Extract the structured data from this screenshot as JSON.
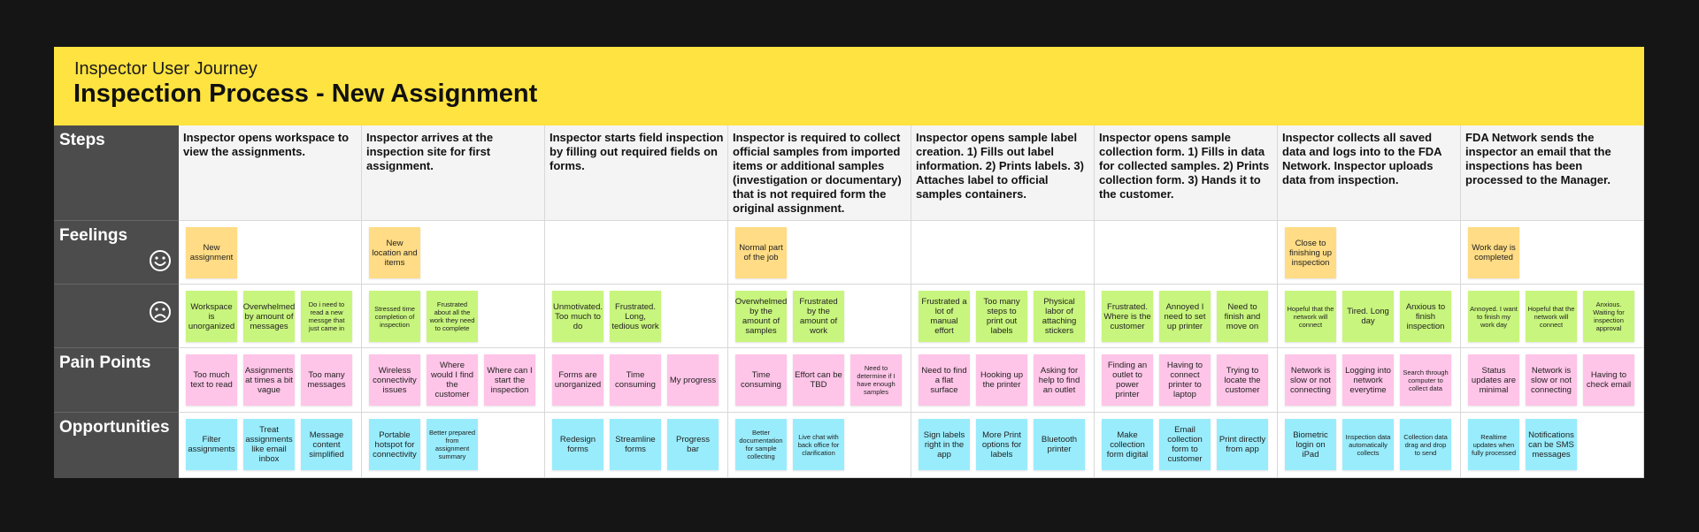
{
  "header": {
    "subtitle": "Inspector User Journey",
    "title": "Inspection Process - New Assignment"
  },
  "colors": {
    "header": "#ffe340",
    "label_column": "#4c4c4c",
    "feeling_positive": "#ffdc85",
    "feeling_negative": "#c8f57d",
    "pain_point": "#ffc5e8",
    "opportunity": "#99ecfc"
  },
  "rows": {
    "steps": "Steps",
    "feelings": "Feelings",
    "pain_points": "Pain Points",
    "opportunities": "Opportunities",
    "face_happy": "smiley-face-icon",
    "face_sad": "sad-face-icon"
  },
  "columns": [
    {
      "step": "Inspector opens workspace to view the assignments.",
      "positive": [
        "New assignment"
      ],
      "negative": [
        "Workspace is unorganized",
        "Overwhelmed by amount of messages",
        "Do i need to read a new messge that just came in"
      ],
      "pain": [
        "Too much text to read",
        "Assignments at times a bit vague",
        "Too many messages"
      ],
      "opportunities": [
        "Filter assignments",
        "Treat assignments like email inbox",
        "Message content simplified"
      ]
    },
    {
      "step": "Inspector arrives at the inspection site for first assignment.",
      "positive": [
        "New location and items"
      ],
      "negative": [
        "Stressed time completion of inspection",
        "Frustrated about all the work they need to complete"
      ],
      "pain": [
        "Wireless connectivity issues",
        "Where would I find the customer",
        "Where can I start the inspection"
      ],
      "opportunities": [
        "Portable hotspot for connectivity",
        "Better prepared from assignment summary"
      ]
    },
    {
      "step": "Inspector starts field inspection by filling out required fields on forms.",
      "positive": [],
      "negative": [
        "Unmotivated. Too much to do",
        "Frustrated. Long, tedious work"
      ],
      "pain": [
        "Forms are unorganized",
        "Time consuming",
        "My progress"
      ],
      "opportunities": [
        "Redesign forms",
        "Streamline forms",
        "Progress bar"
      ]
    },
    {
      "step": "Inspector is required to collect official samples from imported items or additional samples (investigation or documentary) that is not required form the original assignment.",
      "positive": [
        "Normal part of the job"
      ],
      "negative": [
        "Overwhelmed by the amount of samples",
        "Frustrated by the amount of work"
      ],
      "pain": [
        "Time consuming",
        "Effort can be TBD",
        "Need to determine if I have enough samples"
      ],
      "opportunities": [
        "Better documentation for sample collecting",
        "Live chat with back office for clarification"
      ]
    },
    {
      "step": "Inspector opens sample label creation. 1) Fills out label information. 2) Prints labels. 3) Attaches label to official samples containers.",
      "positive": [],
      "negative": [
        "Frustrated a lot of manual effort",
        "Too many steps to print out labels",
        "Physical labor of attaching stickers"
      ],
      "pain": [
        "Need to find a flat surface",
        "Hooking up the printer",
        "Asking for help to find an outlet"
      ],
      "opportunities": [
        "Sign labels right in the app",
        "More Print options for labels",
        "Bluetooth printer"
      ]
    },
    {
      "step": "Inspector opens sample collection form. 1) Fills in data for collected samples. 2) Prints collection form. 3) Hands it to the customer.",
      "positive": [],
      "negative": [
        "Frustrated. Where is the customer",
        "Annoyed I need to set up printer",
        "Need to finish and move on"
      ],
      "pain": [
        "Finding an outlet to power printer",
        "Having to connect printer to laptop",
        "Trying to locate the customer"
      ],
      "opportunities": [
        "Make collection form digital",
        "Email collection form to customer",
        "Print directly from app"
      ]
    },
    {
      "step": "Inspector collects all saved data and logs into to the FDA Network. Inspector uploads data from inspection.",
      "positive": [
        "Close to finishing up inspection"
      ],
      "negative": [
        "Hopeful that the network will connect",
        "Tired. Long day",
        "Anxious to finish inspection"
      ],
      "pain": [
        "Network is slow or not connecting",
        "Logging into network everytime",
        "Search through computer to collect data"
      ],
      "opportunities": [
        "Biometric login on iPad",
        "Inspection data automatically collects",
        "Collection data drag and drop to send"
      ]
    },
    {
      "step": "FDA Network sends the inspector an email that the inspections has been processed to the Manager.",
      "positive": [
        "Work day is completed"
      ],
      "negative": [
        "Annoyed. I want to finish my work day",
        "Hopeful that the network will connect",
        "Anxious. Waiting for inspection approval"
      ],
      "pain": [
        "Status updates are minimal",
        "Network is slow or not connecting",
        "Having to check email"
      ],
      "opportunities": [
        "Realtime updates when fully processed",
        "Notifications can be SMS messages"
      ]
    }
  ]
}
